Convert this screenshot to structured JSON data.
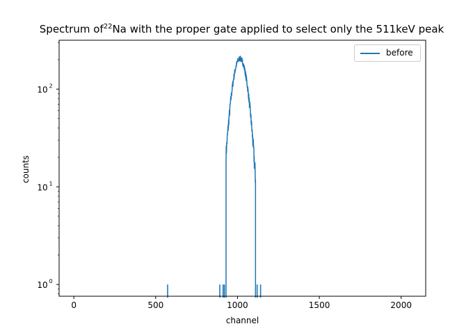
{
  "chart_data": {
    "type": "line",
    "title_main": "Spectrum of",
    "title_sup": "22",
    "title_rest": "Na with the proper gate applied to select only the 511keV peak",
    "xlabel": "channel",
    "ylabel": "counts",
    "xlim": [
      -90,
      2150
    ],
    "ylim_log10": [
      -0.12,
      2.5
    ],
    "y_scale": "log",
    "x_ticks": [
      0,
      500,
      1000,
      1500,
      2000
    ],
    "x_tick_labels": [
      "0",
      "500",
      "1000",
      "1500",
      "2000"
    ],
    "y_ticks_log10": [
      0,
      1,
      2
    ],
    "y_tick_labels": [
      "10",
      "10",
      "10"
    ],
    "y_tick_exponents": [
      "0",
      "1",
      "2"
    ],
    "legend_position": "top-right",
    "grid": false,
    "series": [
      {
        "name": "before",
        "color": "#1f77b4",
        "isolated_points": [
          [
            573,
            1
          ],
          [
            892,
            1
          ],
          [
            912,
            1
          ],
          [
            920,
            1
          ],
          [
            1120,
            1
          ],
          [
            1141,
            1
          ]
        ],
        "peak": {
          "start": 930,
          "end": 1110,
          "center": 1015,
          "sigma": 40,
          "amplitude": 205
        }
      }
    ]
  }
}
